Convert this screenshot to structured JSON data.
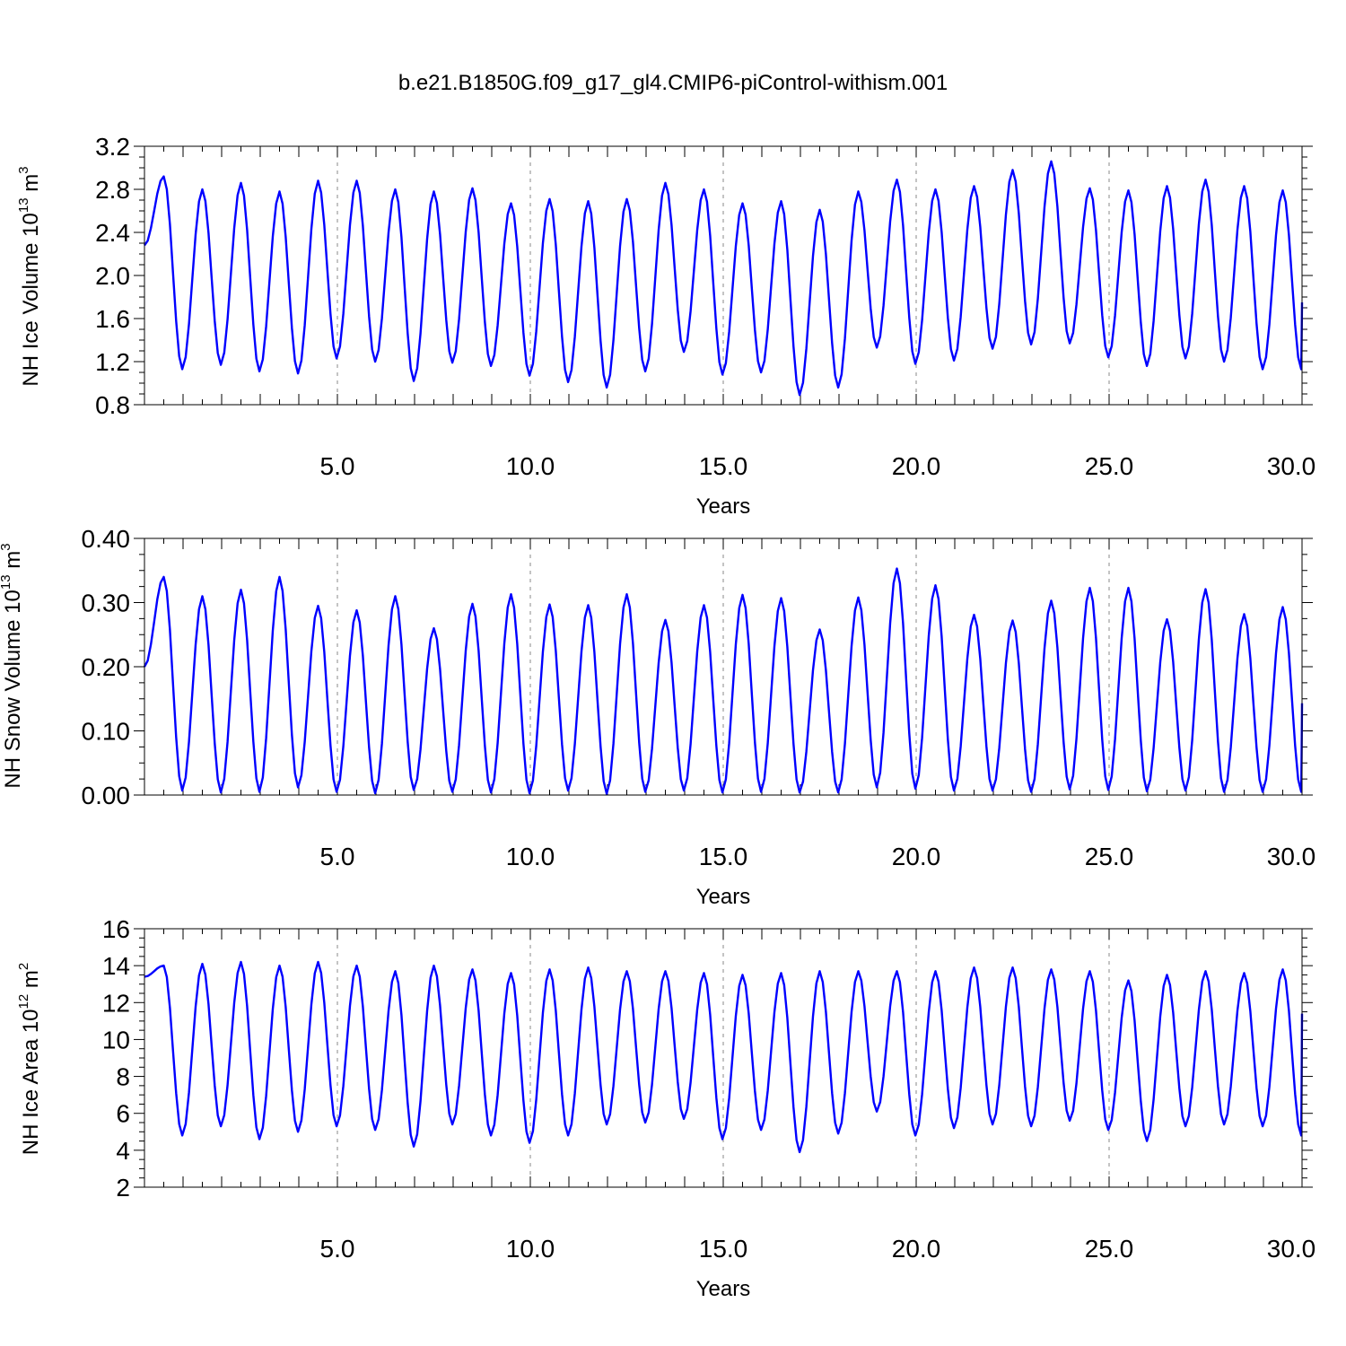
{
  "title": "b.e21.B1850G.f09_g17_gl4.CMIP6-piControl-withism.001",
  "colors": {
    "series": "#0000ff",
    "grid": "#888888"
  },
  "chart_data": [
    {
      "type": "line",
      "ylabel_main": "NH Ice Volume 10",
      "ylabel_exp": "13",
      "ylabel_unit": " m",
      "ylabel_unit_exp": "3",
      "xlabel": "Years",
      "xlim": [
        0,
        30
      ],
      "ylim": [
        0.8,
        3.2
      ],
      "xticks": [
        5,
        10,
        15,
        20,
        25,
        30
      ],
      "xtick_labels": [
        "5.0",
        "10.0",
        "15.0",
        "20.0",
        "25.0",
        "30.0"
      ],
      "yticks": [
        0.8,
        1.2,
        1.6,
        2.0,
        2.4,
        2.8,
        3.2
      ],
      "ytick_labels": [
        "0.8",
        "1.2",
        "1.6",
        "2.0",
        "2.4",
        "2.8",
        "3.2"
      ],
      "vgrid": [
        5,
        10,
        15,
        20,
        25
      ],
      "minima": [
        1.13,
        1.17,
        1.11,
        1.09,
        1.23,
        1.2,
        1.02,
        1.19,
        1.16,
        1.07,
        1.01,
        0.96,
        1.11,
        1.29,
        1.08,
        1.1,
        0.89,
        0.96,
        1.33,
        1.18,
        1.21,
        1.32,
        1.36,
        1.37,
        1.24,
        1.16,
        1.23,
        1.2,
        1.13,
        1.13
      ],
      "maxima": [
        2.92,
        2.8,
        2.86,
        2.78,
        2.88,
        2.88,
        2.8,
        2.78,
        2.81,
        2.67,
        2.71,
        2.69,
        2.71,
        2.86,
        2.8,
        2.67,
        2.69,
        2.61,
        2.78,
        2.89,
        2.8,
        2.83,
        2.98,
        3.06,
        2.81,
        2.79,
        2.83,
        2.89,
        2.83,
        2.79
      ],
      "start_value": 2.28,
      "end_value": 1.75
    },
    {
      "type": "line",
      "ylabel_main": "NH Snow Volume 10",
      "ylabel_exp": "13",
      "ylabel_unit": " m",
      "ylabel_unit_exp": "3",
      "xlabel": "Years",
      "xlim": [
        0,
        30
      ],
      "ylim": [
        0.0,
        0.4
      ],
      "xticks": [
        5,
        10,
        15,
        20,
        25,
        30
      ],
      "xtick_labels": [
        "5.0",
        "10.0",
        "15.0",
        "20.0",
        "25.0",
        "30.0"
      ],
      "yticks": [
        0.0,
        0.1,
        0.2,
        0.3,
        0.4
      ],
      "ytick_labels": [
        "0.00",
        "0.10",
        "0.20",
        "0.30",
        "0.40"
      ],
      "vgrid": [
        5,
        10,
        15,
        20,
        25
      ],
      "minima": [
        0.007,
        0.004,
        0.005,
        0.012,
        0.005,
        0.003,
        0.008,
        0.005,
        0.004,
        0.003,
        0.007,
        0.002,
        0.005,
        0.007,
        0.004,
        0.005,
        0.004,
        0.004,
        0.012,
        0.01,
        0.007,
        0.007,
        0.005,
        0.009,
        0.008,
        0.006,
        0.007,
        0.005,
        0.005,
        0.005
      ],
      "maxima": [
        0.34,
        0.31,
        0.32,
        0.34,
        0.295,
        0.288,
        0.31,
        0.26,
        0.298,
        0.313,
        0.297,
        0.296,
        0.313,
        0.273,
        0.296,
        0.312,
        0.307,
        0.258,
        0.308,
        0.353,
        0.327,
        0.281,
        0.272,
        0.303,
        0.323,
        0.323,
        0.274,
        0.321,
        0.282,
        0.293
      ],
      "start_value": 0.2,
      "end_value": 0.143
    },
    {
      "type": "line",
      "ylabel_main": "NH Ice Area 10",
      "ylabel_exp": "12",
      "ylabel_unit": " m",
      "ylabel_unit_exp": "2",
      "xlabel": "Years",
      "xlim": [
        0,
        30
      ],
      "ylim": [
        2,
        16
      ],
      "xticks": [
        5,
        10,
        15,
        20,
        25,
        30
      ],
      "xtick_labels": [
        "5.0",
        "10.0",
        "15.0",
        "20.0",
        "25.0",
        "30.0"
      ],
      "yticks": [
        2,
        4,
        6,
        8,
        10,
        12,
        14,
        16
      ],
      "ytick_labels": [
        "2",
        "4",
        "6",
        "8",
        "10",
        "12",
        "14",
        "16"
      ],
      "vgrid": [
        5,
        10,
        15,
        20,
        25
      ],
      "minima": [
        4.8,
        5.3,
        4.6,
        5.0,
        5.3,
        5.1,
        4.2,
        5.4,
        4.8,
        4.4,
        4.8,
        5.4,
        5.5,
        5.7,
        4.6,
        5.1,
        3.9,
        4.9,
        6.1,
        4.8,
        5.2,
        5.4,
        5.3,
        5.6,
        5.1,
        4.5,
        5.3,
        5.4,
        5.3,
        4.8
      ],
      "maxima": [
        14.0,
        14.1,
        14.2,
        14.0,
        14.2,
        14.0,
        13.7,
        14.0,
        13.8,
        13.6,
        13.8,
        13.9,
        13.7,
        13.7,
        13.6,
        13.5,
        13.6,
        13.7,
        13.7,
        13.7,
        13.7,
        13.9,
        13.9,
        13.8,
        13.7,
        13.2,
        13.5,
        13.7,
        13.6,
        13.8
      ],
      "start_value": 13.4,
      "end_value": 11.4
    }
  ]
}
